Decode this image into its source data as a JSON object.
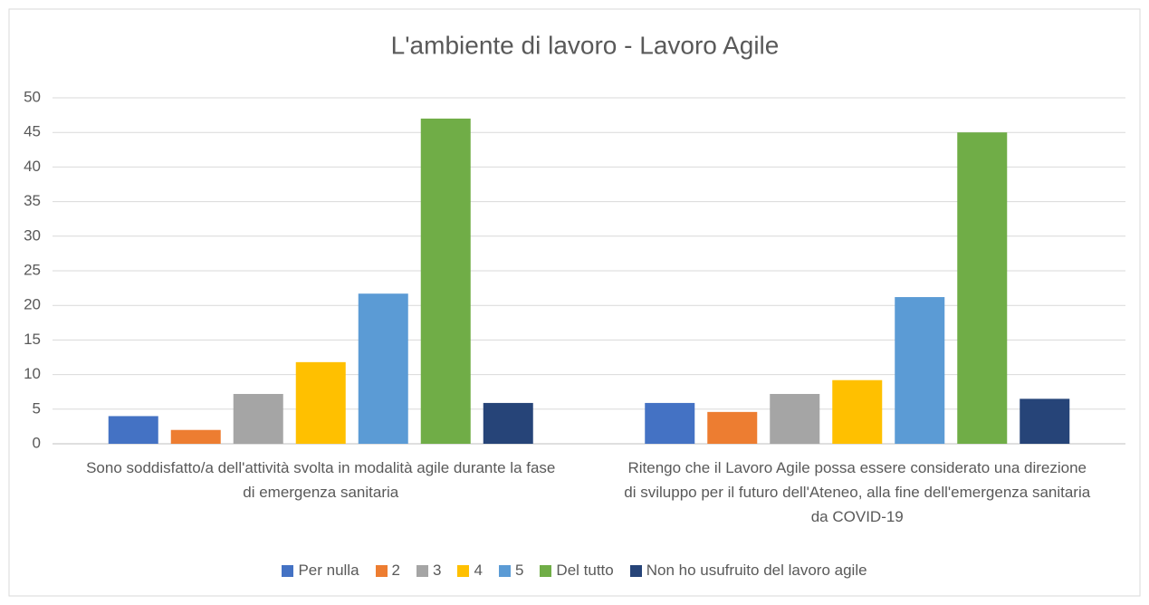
{
  "chart_data": {
    "type": "bar",
    "title": "L'ambiente di lavoro - Lavoro Agile",
    "categories": [
      "Sono soddisfatto/a dell'attività svolta in modalità agile durante la fase di emergenza sanitaria",
      "Ritengo che il Lavoro Agile possa essere considerato una direzione di sviluppo per il futuro dell'Ateneo, alla fine dell'emergenza sanitaria da COVID-19"
    ],
    "series": [
      {
        "name": "Per nulla",
        "color": "#4472c4",
        "values": [
          4,
          5.9
        ]
      },
      {
        "name": "2",
        "color": "#ed7d31",
        "values": [
          2,
          4.6
        ]
      },
      {
        "name": "3",
        "color": "#a5a5a5",
        "values": [
          7.2,
          7.2
        ]
      },
      {
        "name": "4",
        "color": "#ffc000",
        "values": [
          11.8,
          9.2
        ]
      },
      {
        "name": "5",
        "color": "#5b9bd5",
        "values": [
          21.7,
          21.2
        ]
      },
      {
        "name": "Del tutto",
        "color": "#70ad47",
        "values": [
          47,
          45
        ]
      },
      {
        "name": "Non ho usufruito del lavoro agile",
        "color": "#264478",
        "values": [
          5.9,
          6.5
        ]
      }
    ],
    "ylim": [
      0,
      50
    ],
    "yticks": [
      0,
      5,
      10,
      15,
      20,
      25,
      30,
      35,
      40,
      45,
      50
    ],
    "grid": true,
    "legend": "bottom"
  }
}
